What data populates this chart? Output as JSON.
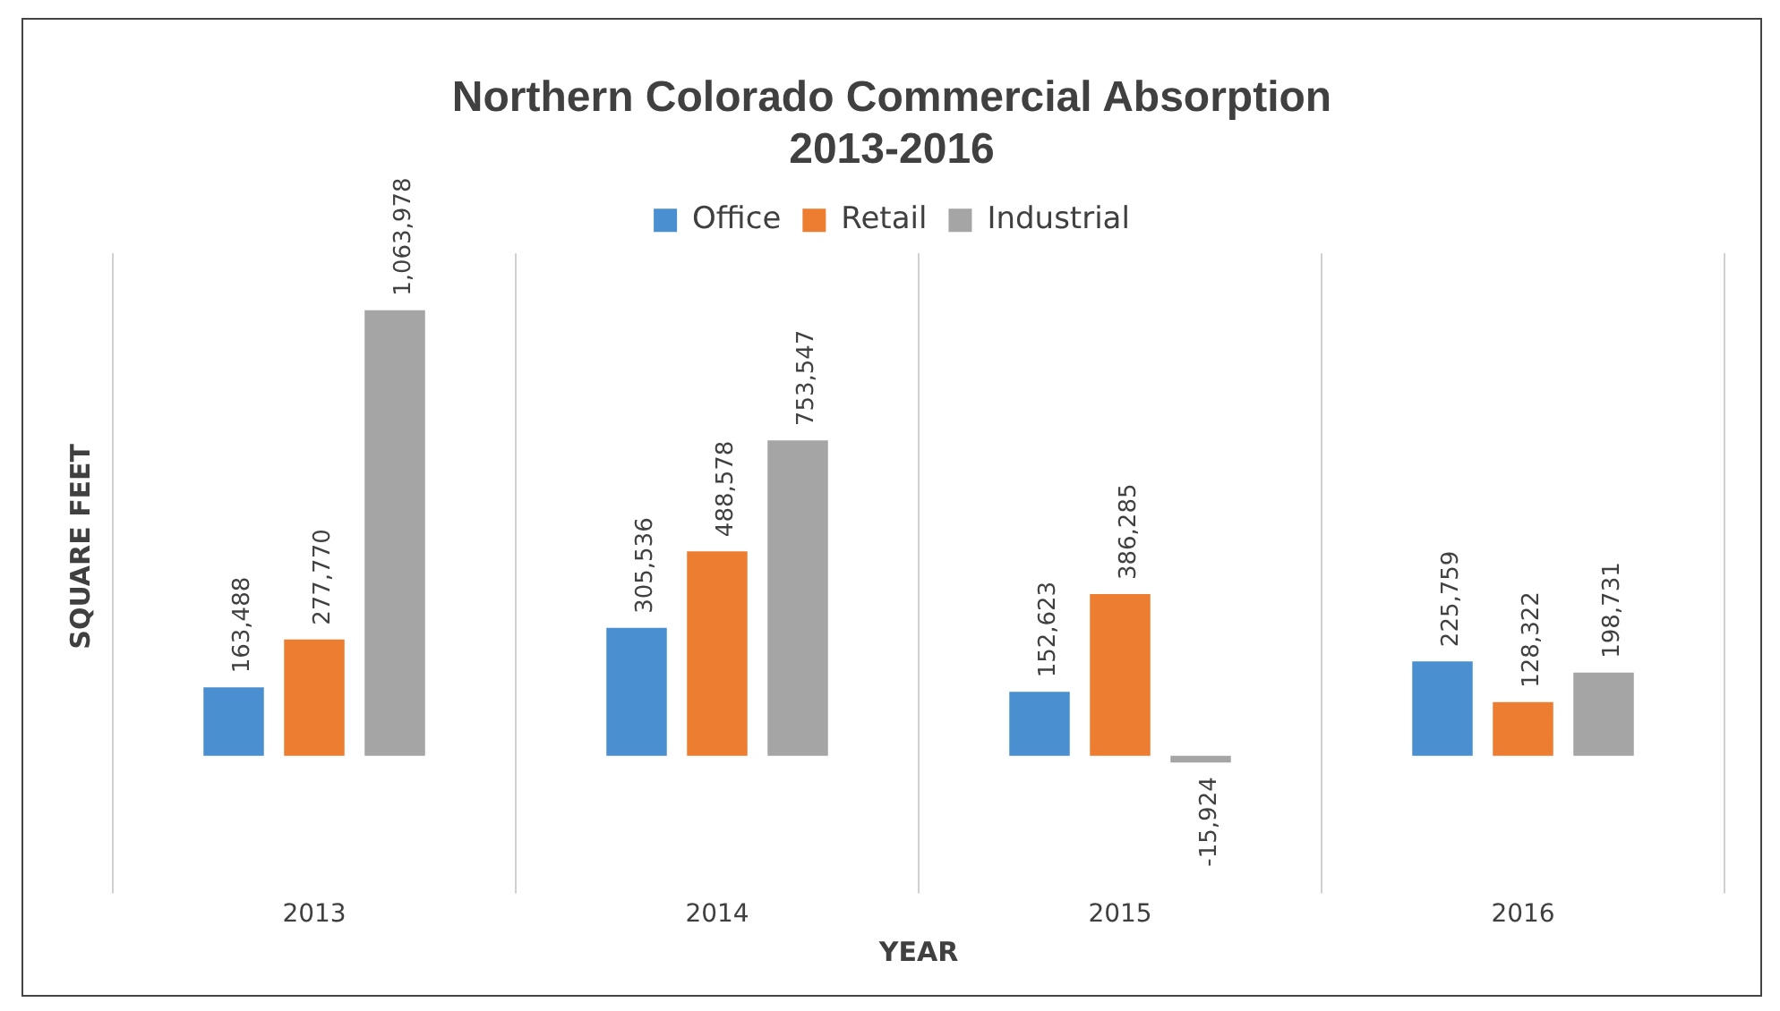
{
  "chart_data": {
    "type": "bar",
    "title": "Northern Colorado Commercial Absorption\n2013-2016",
    "xlabel": "YEAR",
    "ylabel": "SQUARE FEET",
    "categories": [
      "2013",
      "2014",
      "2015",
      "2016"
    ],
    "series": [
      {
        "name": "Office",
        "color": "#4a90d0",
        "values": [
          163488,
          305536,
          152623,
          225759
        ],
        "value_labels": [
          "163,488",
          "305,536",
          "152,623",
          "225,759"
        ]
      },
      {
        "name": "Retail",
        "color": "#ed7d31",
        "values": [
          277770,
          488578,
          386285,
          128322
        ],
        "value_labels": [
          "277,770",
          "488,578",
          "386,285",
          "128,322"
        ]
      },
      {
        "name": "Industrial",
        "color": "#a5a5a5",
        "values": [
          1063978,
          753547,
          -15924,
          198731
        ],
        "value_labels": [
          "1,063,978",
          "753,547",
          "-15,924",
          "198,731"
        ]
      }
    ],
    "grid": "x",
    "legend": "top"
  }
}
